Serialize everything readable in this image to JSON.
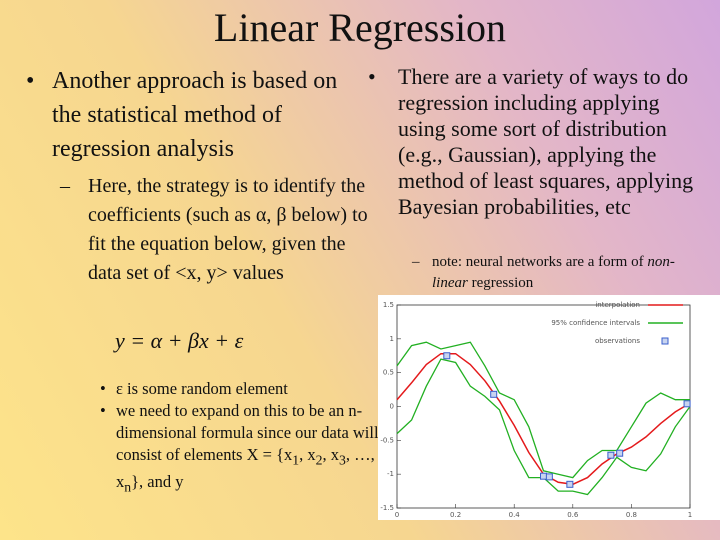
{
  "title": "Linear Regression",
  "left": {
    "bullet": "Another approach is based on the statistical method of regression analysis",
    "sub_bullet": "Here, the strategy is to identify the coefficients (such as α, β below) to fit the equation below, given the data set of <x, y> values",
    "equation": "y = α + βx + ε",
    "notes": [
      [
        "ε is some random element"
      ],
      [
        "we need to expand on this to be an n-dimensional formula since our data will consist of elements X = {x",
        "1",
        ", x",
        "2",
        ", x",
        "3",
        ", …, x",
        "n",
        "}, and y"
      ]
    ]
  },
  "right": {
    "bullet": "There are a variety of ways to do regression including applying using some sort of distribution (e.g., Gaussian), applying the method of least squares, applying Bayesian probabilities, etc",
    "note": [
      "note:  neural networks are a form of ",
      "non-linear",
      " regression"
    ]
  },
  "chart_data": {
    "type": "line",
    "x": [
      0,
      0.05,
      0.1,
      0.15,
      0.2,
      0.25,
      0.3,
      0.35,
      0.4,
      0.45,
      0.5,
      0.55,
      0.6,
      0.65,
      0.7,
      0.75,
      0.8,
      0.85,
      0.9,
      0.95,
      1
    ],
    "series": [
      {
        "name": "interpolation",
        "color": "#e41a1c",
        "values": [
          0.1,
          0.35,
          0.62,
          0.78,
          0.78,
          0.62,
          0.38,
          0.08,
          -0.28,
          -0.68,
          -1.0,
          -1.12,
          -1.15,
          -1.05,
          -0.85,
          -0.7,
          -0.6,
          -0.45,
          -0.25,
          -0.08,
          0.05
        ]
      },
      {
        "name": "95% confidence intervals",
        "color": "#22b022",
        "upper": [
          0.6,
          0.9,
          0.95,
          0.85,
          0.9,
          0.95,
          0.6,
          0.2,
          0.1,
          -0.3,
          -0.95,
          -1.0,
          -1.05,
          -0.8,
          -0.65,
          -0.65,
          -0.3,
          0.05,
          0.2,
          0.1,
          0.1
        ],
        "lower": [
          -0.4,
          -0.2,
          0.3,
          0.7,
          0.65,
          0.3,
          0.15,
          -0.05,
          -0.65,
          -1.05,
          -1.05,
          -1.25,
          -1.25,
          -1.3,
          -1.05,
          -0.75,
          -0.9,
          -0.95,
          -0.7,
          -0.3,
          0.0
        ]
      },
      {
        "name": "observations",
        "color": "#3a5fcd",
        "x": [
          0.17,
          0.33,
          0.5,
          0.52,
          0.59,
          0.73,
          0.76,
          0.99
        ],
        "values": [
          0.75,
          0.18,
          -1.03,
          -1.04,
          -1.15,
          -0.72,
          -0.69,
          0.04
        ]
      }
    ],
    "xlim": [
      0,
      1
    ],
    "ylim": [
      -1.5,
      1.5
    ],
    "xticks": [
      0,
      0.2,
      0.4,
      0.6,
      0.8,
      1
    ],
    "yticks": [
      -1.5,
      -1,
      -0.5,
      0,
      0.5,
      1,
      1.5
    ]
  }
}
